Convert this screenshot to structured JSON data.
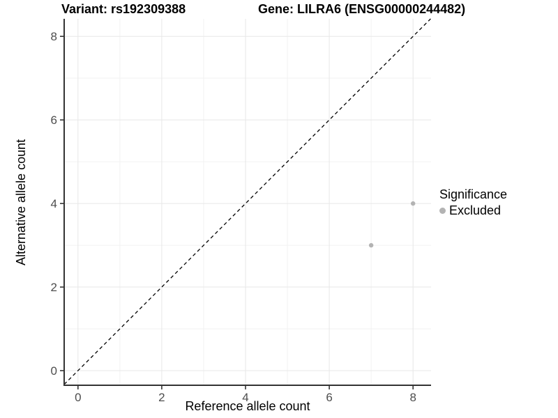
{
  "header": {
    "variant_title": "Variant: rs192309388",
    "gene_title": "Gene: LILRA6 (ENSG00000244482)"
  },
  "axes": {
    "x_label": "Reference allele count",
    "y_label": "Alternative allele count"
  },
  "legend": {
    "title": "Significance",
    "items": [
      {
        "label": "Excluded",
        "color": "#b3b3b3",
        "marker": "circle-icon"
      }
    ]
  },
  "colors": {
    "background": "#ffffff",
    "point": "#b3b3b3",
    "axis_line": "#333333",
    "tick_mark": "#333333",
    "tick_label": "#4d4d4d",
    "grid_major": "#e7e7e7",
    "grid_minor": "#f2f2f2",
    "reference_line": "#000000"
  },
  "chart_data": {
    "type": "scatter",
    "title": "Variant: rs192309388 — Gene: LILRA6 (ENSG00000244482)",
    "xlabel": "Reference allele count",
    "ylabel": "Alternative allele count",
    "xlim": [
      -0.33,
      8.43
    ],
    "ylim": [
      -0.35,
      8.42
    ],
    "x_ticks": [
      0,
      2,
      4,
      6,
      8
    ],
    "y_ticks": [
      0,
      2,
      4,
      6,
      8
    ],
    "x_minor_grid": [
      1,
      3,
      5,
      7
    ],
    "y_minor_grid": [
      1,
      3,
      5,
      7
    ],
    "grid": true,
    "legend_position": "right",
    "series": [
      {
        "name": "Excluded",
        "color": "#b3b3b3",
        "points": [
          [
            7,
            3
          ],
          [
            8,
            4
          ]
        ]
      }
    ],
    "reference_line": {
      "kind": "identity",
      "slope": 1,
      "intercept": 0,
      "style": "dashed",
      "color": "#000000"
    }
  }
}
